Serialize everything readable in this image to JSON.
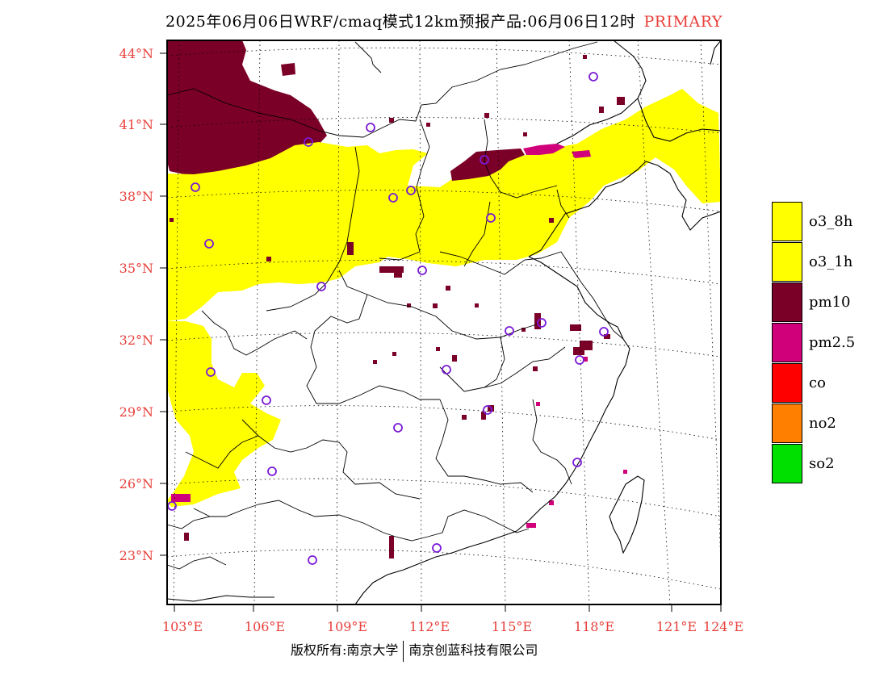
{
  "title": {
    "main": "2025年06月06日WRF/cmaq模式12km预报产品:06月06日12时",
    "tag": "PRIMARY"
  },
  "lat_labels": [
    "44°N",
    "41°N",
    "38°N",
    "35°N",
    "32°N",
    "29°N",
    "26°N",
    "23°N"
  ],
  "lon_labels": [
    "103°E",
    "106°E",
    "109°E",
    "112°E",
    "115°E",
    "118°E",
    "121°E",
    "124°E"
  ],
  "legend": [
    {
      "label": "o3_8h",
      "color": "#ffff00"
    },
    {
      "label": "o3_1h",
      "color": "#ffff00"
    },
    {
      "label": "pm10",
      "color": "#7b0028"
    },
    {
      "label": "pm2.5",
      "color": "#d0007a"
    },
    {
      "label": "co",
      "color": "#ff0000"
    },
    {
      "label": "no2",
      "color": "#ff8000"
    },
    {
      "label": "so2",
      "color": "#00e000"
    }
  ],
  "copyright": {
    "left": "版权所有:南京大学",
    "right": "南京创蓝科技有限公司"
  }
}
